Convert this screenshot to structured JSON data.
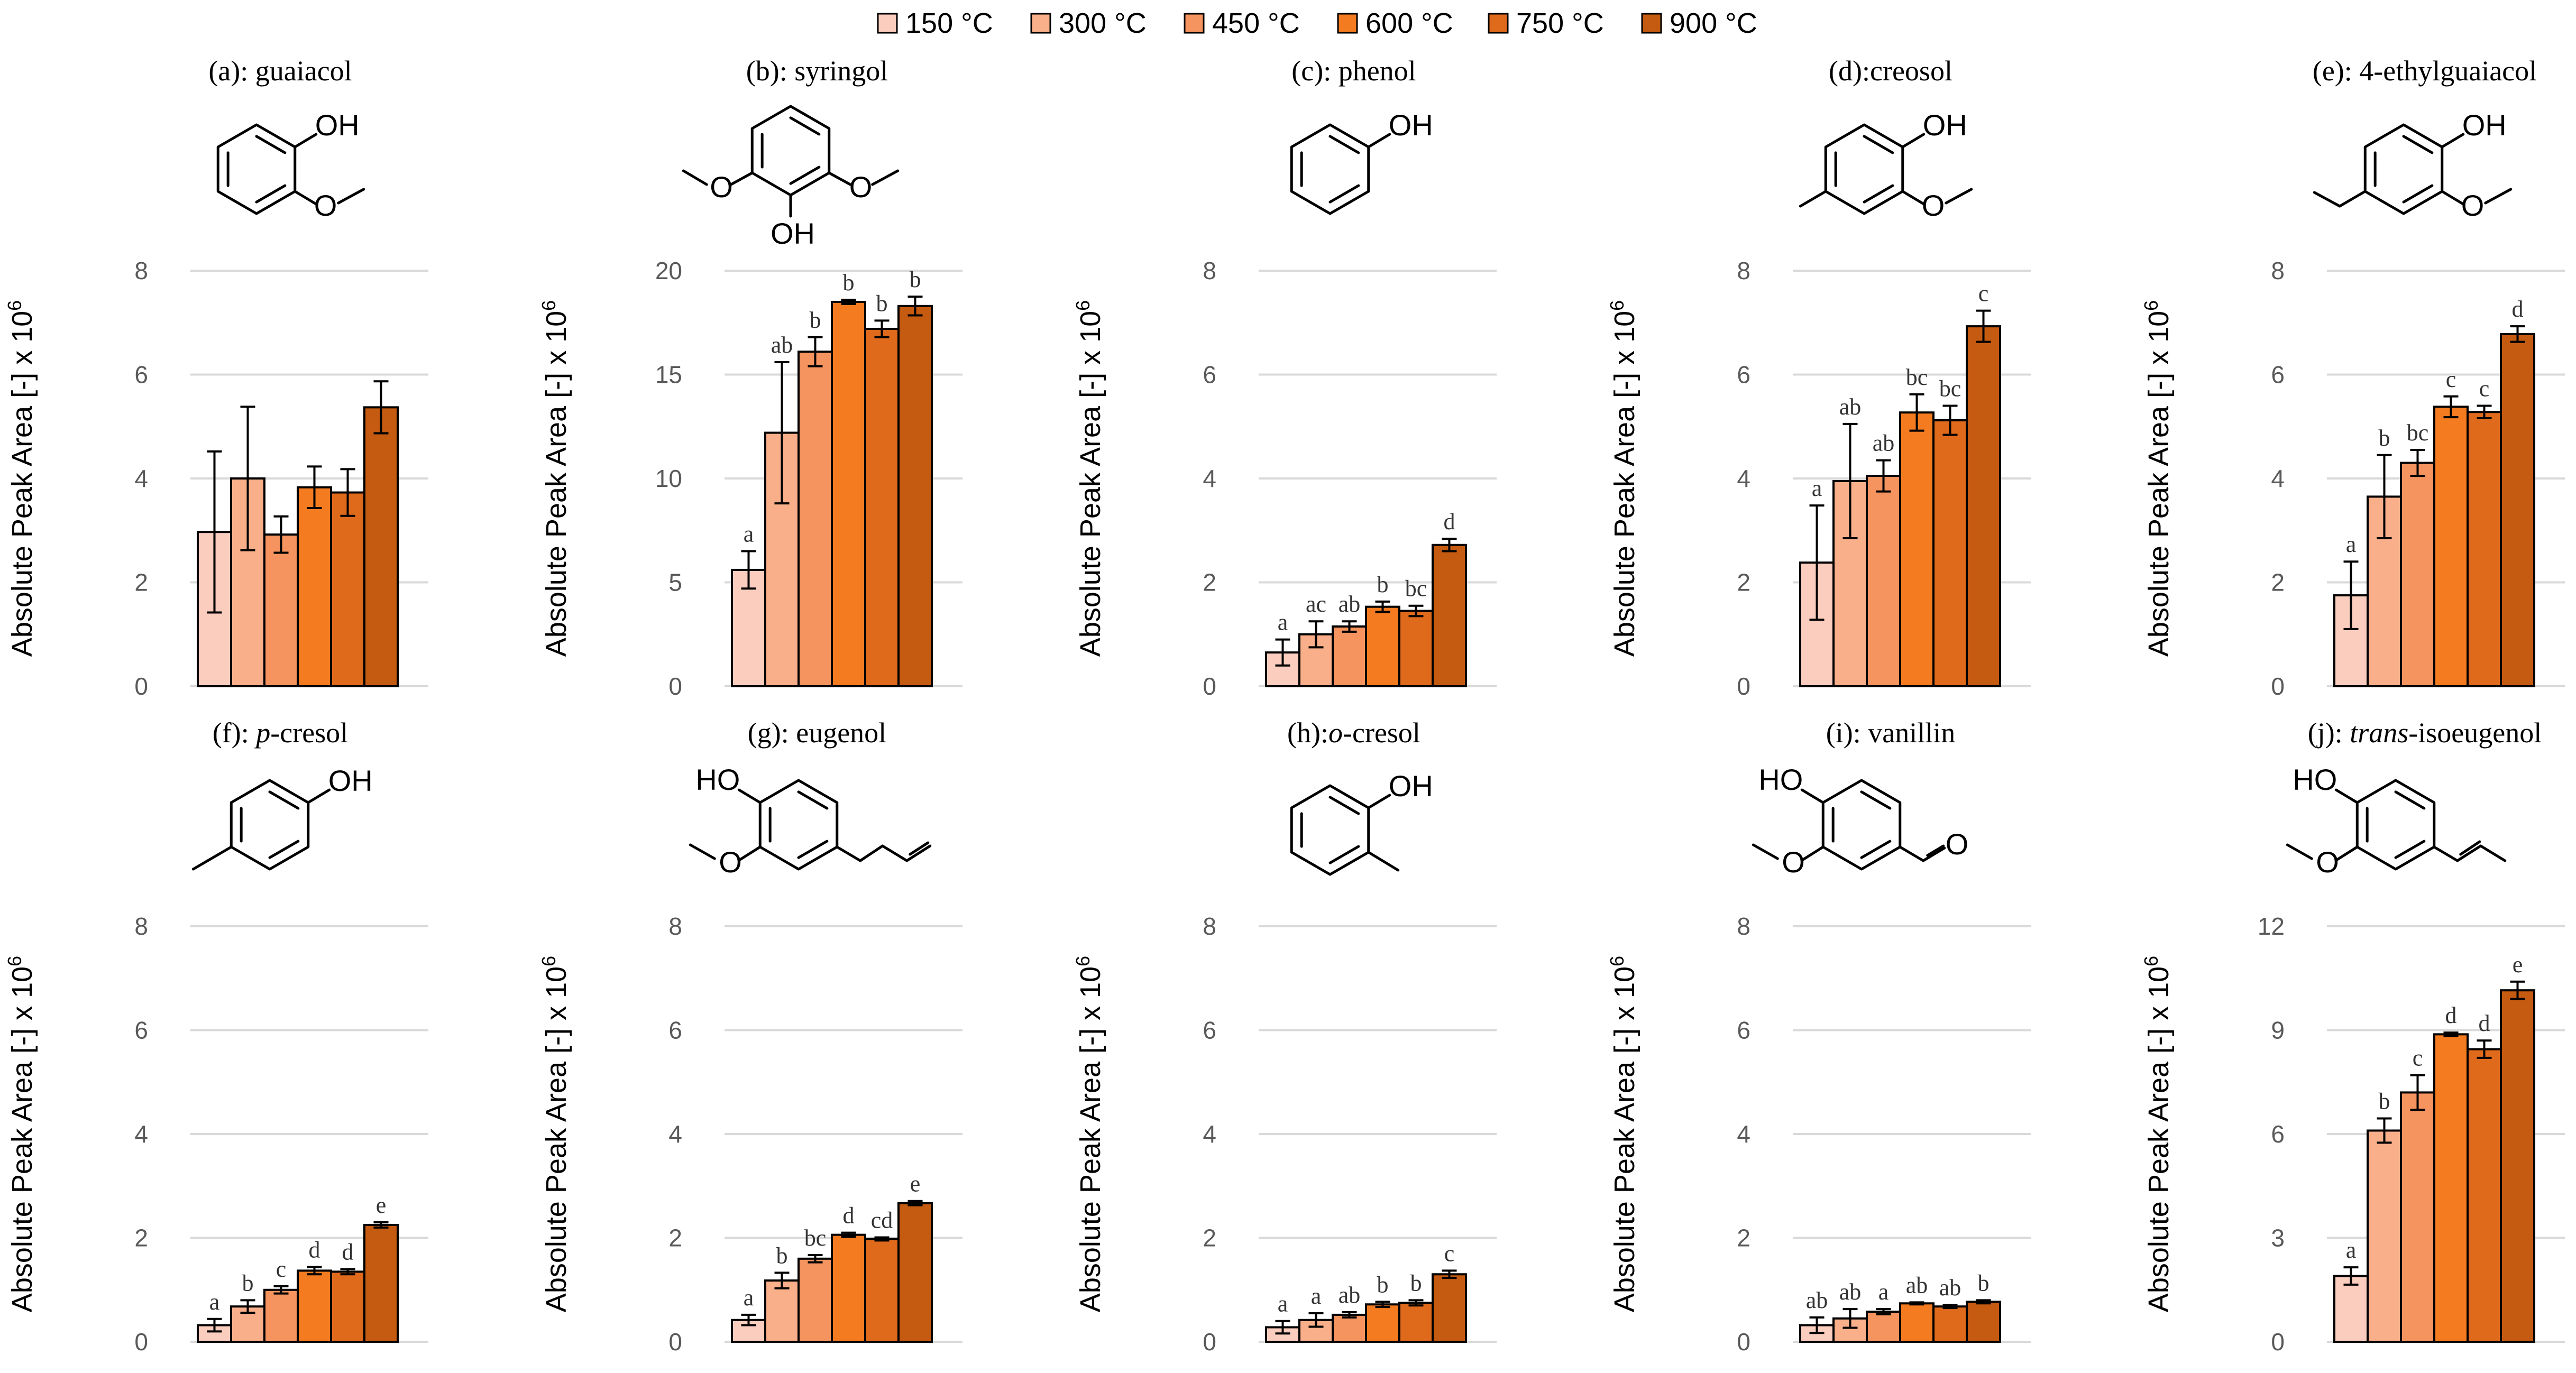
{
  "legend": [
    {
      "label": "150 °C",
      "color": "#FBCDBE"
    },
    {
      "label": "300 °C",
      "color": "#F8AF8A"
    },
    {
      "label": "450 °C",
      "color": "#F69460"
    },
    {
      "label": "600 °C",
      "color": "#F47B20"
    },
    {
      "label": "750 °C",
      "color": "#E06A1C"
    },
    {
      "label": "900 °C",
      "color": "#C55A11"
    }
  ],
  "ylabel_main": "Absolute Peak Area [-] x 10",
  "ylabel_exp": "6",
  "chart_data": [
    {
      "type": "bar",
      "title_prefix": "(a): ",
      "title_italic": "",
      "title_suffix": "guaiacol",
      "categories": [
        "150 °C",
        "300 °C",
        "450 °C",
        "600 °C",
        "750 °C",
        "900 °C"
      ],
      "values": [
        2.97,
        4.0,
        2.92,
        3.83,
        3.73,
        5.37
      ],
      "errors": [
        1.55,
        1.38,
        0.35,
        0.4,
        0.45,
        0.5
      ],
      "labels": [
        "",
        "",
        "",
        "",
        "",
        ""
      ],
      "ylim": [
        0,
        8
      ],
      "yticks": [
        0,
        2,
        4,
        6,
        8
      ],
      "ytick_labels": [
        "0",
        "2",
        "4",
        "6",
        "8"
      ],
      "molecule": {
        "type": "guaiacol",
        "labels": {
          "oh": "OH",
          "o": "O"
        }
      }
    },
    {
      "type": "bar",
      "title_prefix": "(b): ",
      "title_italic": "",
      "title_suffix": "syringol",
      "categories": [
        "150 °C",
        "300 °C",
        "450 °C",
        "600 °C",
        "750 °C",
        "900 °C"
      ],
      "values": [
        5.6,
        12.2,
        16.1,
        18.5,
        17.2,
        18.3
      ],
      "errors": [
        0.9,
        3.4,
        0.7,
        0.1,
        0.4,
        0.45
      ],
      "labels": [
        "a",
        "ab",
        "b",
        "b",
        "b",
        "b"
      ],
      "ylim": [
        0,
        20
      ],
      "yticks": [
        0,
        5,
        10,
        15,
        20
      ],
      "ytick_labels": [
        "0",
        "5",
        "10",
        "15",
        "20"
      ],
      "molecule": {
        "type": "syringol",
        "labels": {
          "oh": "OH",
          "o1": "O",
          "o2": "O"
        }
      }
    },
    {
      "type": "bar",
      "title_prefix": "(c): ",
      "title_italic": "",
      "title_suffix": "phenol",
      "categories": [
        "150 °C",
        "300 °C",
        "450 °C",
        "600 °C",
        "750 °C",
        "900 °C"
      ],
      "values": [
        0.65,
        1.0,
        1.15,
        1.53,
        1.45,
        2.72
      ],
      "errors": [
        0.25,
        0.25,
        0.1,
        0.1,
        0.1,
        0.12
      ],
      "labels": [
        "a",
        "ac",
        "ab",
        "b",
        "bc",
        "d"
      ],
      "ylim": [
        0,
        8
      ],
      "yticks": [
        0,
        2,
        4,
        6,
        8
      ],
      "ytick_labels": [
        "0",
        "2",
        "4",
        "6",
        "8"
      ],
      "molecule": {
        "type": "phenol",
        "labels": {
          "oh": "OH"
        }
      }
    },
    {
      "type": "bar",
      "title_prefix": "(d):",
      "title_italic": "",
      "title_suffix": "creosol",
      "categories": [
        "150 °C",
        "300 °C",
        "450 °C",
        "600 °C",
        "750 °C",
        "900 °C"
      ],
      "values": [
        2.38,
        3.95,
        4.05,
        5.27,
        5.12,
        6.93
      ],
      "errors": [
        1.1,
        1.1,
        0.3,
        0.35,
        0.28,
        0.3
      ],
      "labels": [
        "a",
        "ab",
        "ab",
        "bc",
        "bc",
        "c"
      ],
      "ylim": [
        0,
        8
      ],
      "yticks": [
        0,
        2,
        4,
        6,
        8
      ],
      "ytick_labels": [
        "0",
        "2",
        "4",
        "6",
        "8"
      ],
      "molecule": {
        "type": "creosol",
        "labels": {
          "oh": "OH",
          "o": "O"
        }
      }
    },
    {
      "type": "bar",
      "title_prefix": "(e): ",
      "title_italic": "",
      "title_suffix": "4-ethylguaiacol",
      "categories": [
        "150 °C",
        "300 °C",
        "450 °C",
        "600 °C",
        "750 °C",
        "900 °C"
      ],
      "values": [
        1.75,
        3.65,
        4.3,
        5.38,
        5.28,
        6.78
      ],
      "errors": [
        0.65,
        0.8,
        0.25,
        0.2,
        0.12,
        0.15
      ],
      "labels": [
        "a",
        "b",
        "bc",
        "c",
        "c",
        "d"
      ],
      "ylim": [
        0,
        8
      ],
      "yticks": [
        0,
        2,
        4,
        6,
        8
      ],
      "ytick_labels": [
        "0",
        "2",
        "4",
        "6",
        "8"
      ],
      "molecule": {
        "type": "ethylguaiacol",
        "labels": {
          "oh": "OH",
          "o": "O"
        }
      }
    },
    {
      "type": "bar",
      "title_prefix": "(f): ",
      "title_italic": "p",
      "title_suffix": "-cresol",
      "categories": [
        "150 °C",
        "300 °C",
        "450 °C",
        "600 °C",
        "750 °C",
        "900 °C"
      ],
      "values": [
        0.32,
        0.68,
        1.0,
        1.37,
        1.35,
        2.25
      ],
      "errors": [
        0.12,
        0.12,
        0.07,
        0.07,
        0.05,
        0.05
      ],
      "labels": [
        "a",
        "b",
        "c",
        "d",
        "d",
        "e"
      ],
      "ylim": [
        0,
        8
      ],
      "yticks": [
        0,
        2,
        4,
        6,
        8
      ],
      "ytick_labels": [
        "0",
        "2",
        "4",
        "6",
        "8"
      ],
      "molecule": {
        "type": "pcresol",
        "labels": {
          "oh": "OH"
        }
      }
    },
    {
      "type": "bar",
      "title_prefix": "(g): ",
      "title_italic": "",
      "title_suffix": "eugenol",
      "categories": [
        "150 °C",
        "300 °C",
        "450 °C",
        "600 °C",
        "750 °C",
        "900 °C"
      ],
      "values": [
        0.42,
        1.18,
        1.6,
        2.06,
        1.98,
        2.67
      ],
      "errors": [
        0.1,
        0.15,
        0.07,
        0.04,
        0.03,
        0.04
      ],
      "labels": [
        "a",
        "b",
        "bc",
        "d",
        "cd",
        "e"
      ],
      "ylim": [
        0,
        8
      ],
      "yticks": [
        0,
        2,
        4,
        6,
        8
      ],
      "ytick_labels": [
        "0",
        "2",
        "4",
        "6",
        "8"
      ],
      "molecule": {
        "type": "eugenol",
        "labels": {
          "oh": "HO",
          "o": "O"
        }
      }
    },
    {
      "type": "bar",
      "title_prefix": "(h):",
      "title_italic": "o",
      "title_suffix": "-cresol",
      "categories": [
        "150 °C",
        "300 °C",
        "450 °C",
        "600 °C",
        "750 °C",
        "900 °C"
      ],
      "values": [
        0.28,
        0.42,
        0.52,
        0.72,
        0.75,
        1.3
      ],
      "errors": [
        0.12,
        0.13,
        0.05,
        0.05,
        0.05,
        0.07
      ],
      "labels": [
        "a",
        "a",
        "ab",
        "b",
        "b",
        "c"
      ],
      "ylim": [
        0,
        8
      ],
      "yticks": [
        0,
        2,
        4,
        6,
        8
      ],
      "ytick_labels": [
        "0",
        "2",
        "4",
        "6",
        "8"
      ],
      "molecule": {
        "type": "ocresol",
        "labels": {
          "oh": "OH"
        }
      }
    },
    {
      "type": "bar",
      "title_prefix": "(i): ",
      "title_italic": "",
      "title_suffix": "vanillin",
      "categories": [
        "150 °C",
        "300 °C",
        "450 °C",
        "600 °C",
        "750 °C",
        "900 °C"
      ],
      "values": [
        0.32,
        0.45,
        0.58,
        0.74,
        0.68,
        0.77
      ],
      "errors": [
        0.15,
        0.18,
        0.05,
        0.02,
        0.03,
        0.03
      ],
      "labels": [
        "ab",
        "ab",
        "a",
        "ab",
        "ab",
        "b"
      ],
      "ylim": [
        0,
        8
      ],
      "yticks": [
        0,
        2,
        4,
        6,
        8
      ],
      "ytick_labels": [
        "0",
        "2",
        "4",
        "6",
        "8"
      ],
      "molecule": {
        "type": "vanillin",
        "labels": {
          "oh": "HO",
          "o": "O",
          "ald": "O"
        }
      }
    },
    {
      "type": "bar",
      "title_prefix": "(j): ",
      "title_italic": "trans",
      "title_suffix": "-isoeugenol",
      "categories": [
        "150 °C",
        "300 °C",
        "450 °C",
        "600 °C",
        "750 °C",
        "900 °C"
      ],
      "values": [
        1.9,
        6.1,
        7.2,
        8.88,
        8.45,
        10.15
      ],
      "errors": [
        0.25,
        0.35,
        0.5,
        0.05,
        0.25,
        0.25
      ],
      "labels": [
        "a",
        "b",
        "c",
        "d",
        "d",
        "e"
      ],
      "ylim": [
        0,
        12
      ],
      "yticks": [
        0,
        3,
        6,
        9,
        12
      ],
      "ytick_labels": [
        "0",
        "3",
        "6",
        "9",
        "12"
      ],
      "molecule": {
        "type": "isoeugenol",
        "labels": {
          "oh": "HO",
          "o": "O"
        }
      }
    }
  ]
}
